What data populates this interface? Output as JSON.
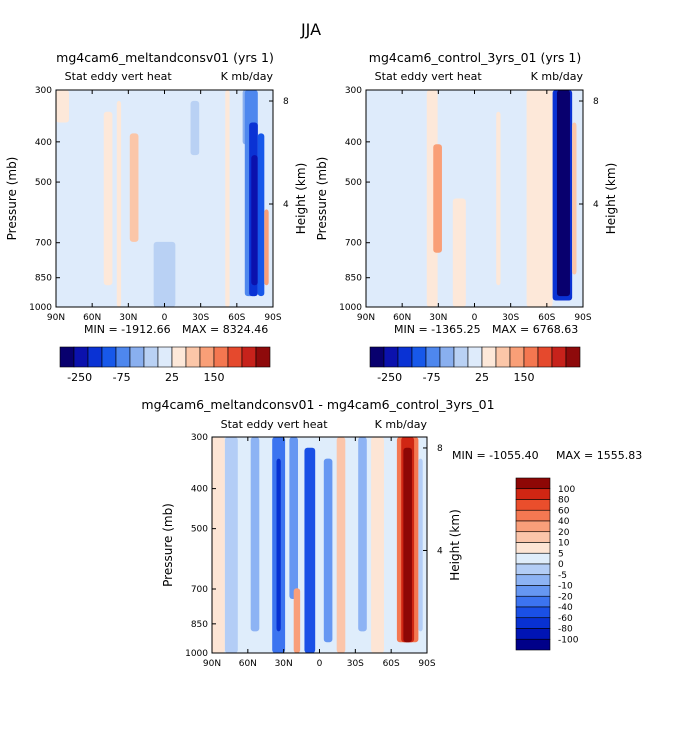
{
  "figure_title": "JJA",
  "colors": {
    "cont_scale": [
      "#08006e",
      "#0b11ad",
      "#0a32d4",
      "#1758ea",
      "#4e87ee",
      "#89afef",
      "#b9d1f4",
      "#deebfb",
      "#fde8d9",
      "#fbc6a8",
      "#f99f77",
      "#f47750",
      "#e5492d",
      "#c7221b",
      "#8e0a0b"
    ],
    "diff_scale": [
      "#000089",
      "#0014b4",
      "#0831d2",
      "#1a50e6",
      "#3c74f0",
      "#6697f2",
      "#8db3f4",
      "#b3cdf6",
      "#dfedfb",
      "#fde5d5",
      "#fbc5aa",
      "#f99f7a",
      "#f47852",
      "#ea4e2c",
      "#d02613",
      "#8e0705"
    ]
  },
  "chart_data": [
    {
      "id": "panel-meltandconsv",
      "type": "heatmap",
      "title": "mg4cam6_meltandconsv01 (yrs 1)",
      "left_label": "Stat eddy vert heat",
      "right_label": "K mb/day",
      "x_ticks": [
        "90N",
        "60N",
        "30N",
        "0",
        "30S",
        "60S",
        "90S"
      ],
      "y_ticks": [
        "300",
        "400",
        "500",
        "700",
        "850",
        "1000"
      ],
      "y_tick_values": [
        300,
        400,
        500,
        700,
        850,
        1000
      ],
      "height_ticks": [
        "8",
        "4"
      ],
      "height_tick_values": [
        8,
        4
      ],
      "ylabel": "Pressure (mb)",
      "ylabel_right": "Height (km)",
      "min_text": "MIN = -1912.66",
      "max_text": "MAX = 8324.46",
      "scale": "cont",
      "colorbar_labels": [
        "-250",
        "-75",
        "25",
        "150"
      ]
    },
    {
      "id": "panel-control",
      "type": "heatmap",
      "title": "mg4cam6_control_3yrs_01 (yrs 1)",
      "left_label": "Stat eddy vert heat",
      "right_label": "K mb/day",
      "x_ticks": [
        "90N",
        "60N",
        "30N",
        "0",
        "30S",
        "60S",
        "90S"
      ],
      "y_ticks": [
        "300",
        "400",
        "500",
        "700",
        "850",
        "1000"
      ],
      "y_tick_values": [
        300,
        400,
        500,
        700,
        850,
        1000
      ],
      "height_ticks": [
        "8",
        "4"
      ],
      "height_tick_values": [
        8,
        4
      ],
      "ylabel": "Pressure (mb)",
      "ylabel_right": "Height (km)",
      "min_text": "MIN = -1365.25",
      "max_text": "MAX = 6768.63",
      "scale": "cont",
      "colorbar_labels": [
        "-250",
        "-75",
        "25",
        "150"
      ]
    },
    {
      "id": "panel-difference",
      "type": "heatmap",
      "title": "mg4cam6_meltandconsv01 - mg4cam6_control_3yrs_01",
      "left_label": "Stat eddy vert heat",
      "right_label": "K mb/day",
      "x_ticks": [
        "90N",
        "60N",
        "30N",
        "0",
        "30S",
        "60S",
        "90S"
      ],
      "y_ticks": [
        "300",
        "400",
        "500",
        "700",
        "850",
        "1000"
      ],
      "y_tick_values": [
        300,
        400,
        500,
        700,
        850,
        1000
      ],
      "height_ticks": [
        "8",
        "4"
      ],
      "height_tick_values": [
        8,
        4
      ],
      "ylabel": "Pressure (mb)",
      "ylabel_right": "Height (km)",
      "min_text": "MIN = -1055.40",
      "max_text": "MAX = 1555.83",
      "scale": "diff",
      "colorbar_labels": [
        "100",
        "80",
        "60",
        "40",
        "20",
        "10",
        "5",
        "0",
        "-5",
        "-10",
        "-20",
        "-40",
        "-60",
        "-80",
        "-100"
      ]
    }
  ]
}
